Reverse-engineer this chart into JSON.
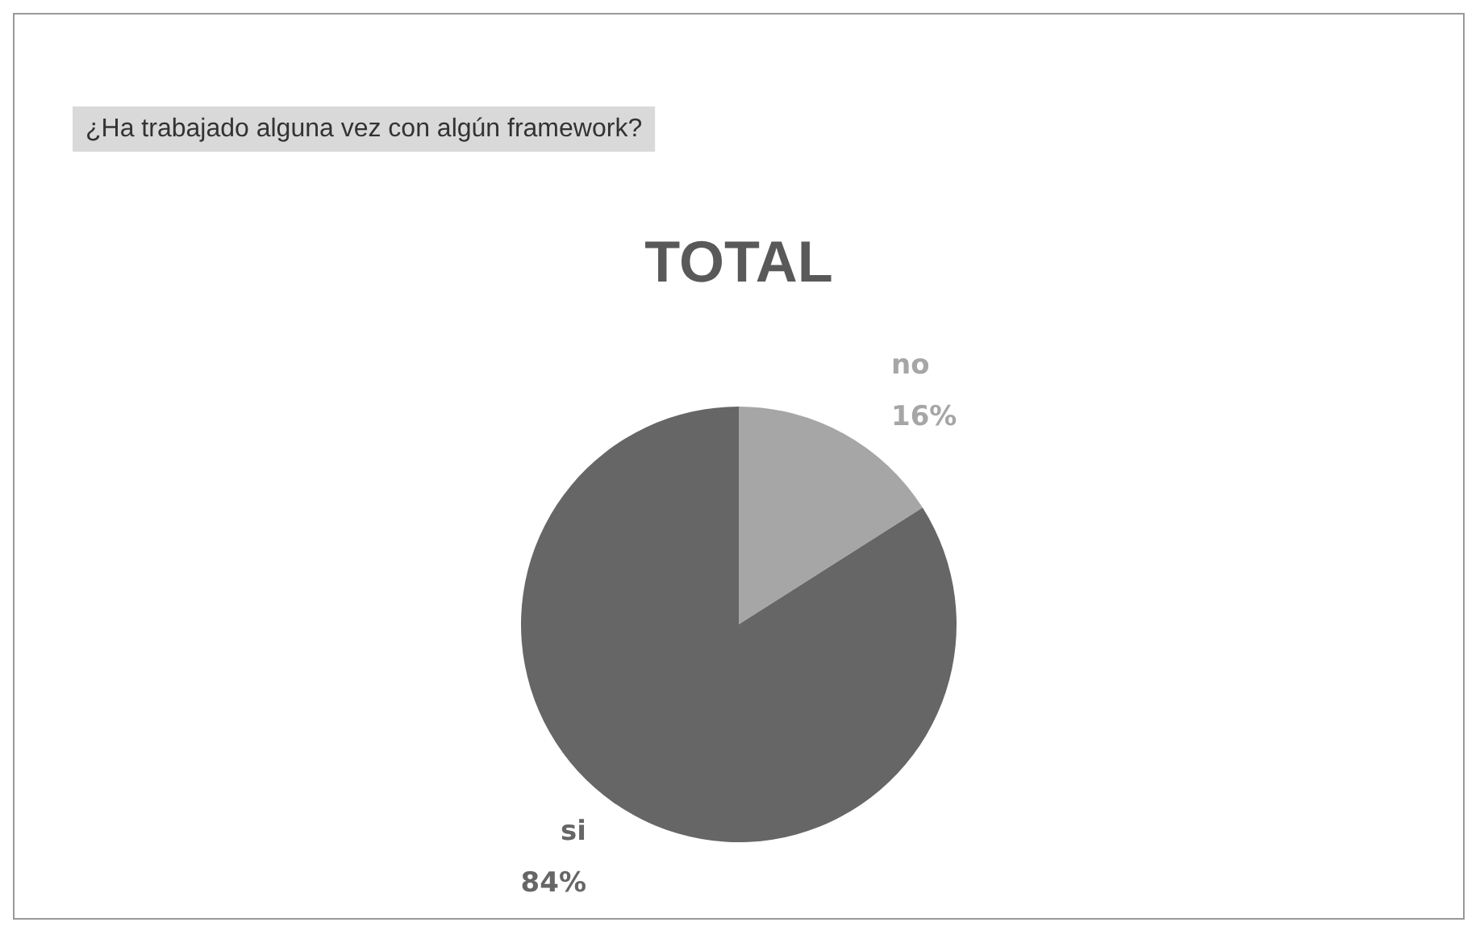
{
  "chart_data": {
    "type": "pie",
    "title": "TOTAL",
    "subtitle": "¿Ha trabajado alguna vez con algún framework?",
    "categories": [
      "no",
      "si"
    ],
    "values": [
      16,
      84
    ],
    "colors": [
      "#a6a6a6",
      "#666666"
    ],
    "value_labels": [
      "16%",
      "84%"
    ]
  }
}
